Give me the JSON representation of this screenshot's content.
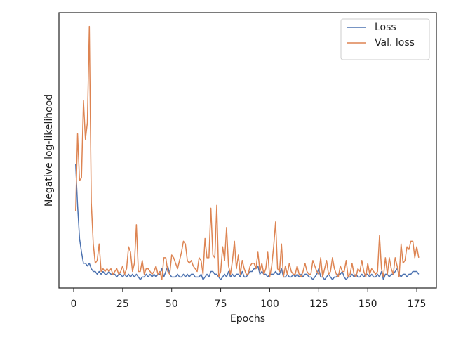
{
  "chart_data": {
    "type": "line",
    "x_label": "Epochs",
    "y_label": "Negative log-likelihood",
    "x": [
      1,
      2,
      3,
      4,
      5,
      6,
      7,
      8,
      9,
      10,
      11,
      12,
      13,
      14,
      15,
      16,
      17,
      18,
      19,
      20,
      21,
      22,
      23,
      24,
      25,
      26,
      27,
      28,
      29,
      30,
      31,
      32,
      33,
      34,
      35,
      36,
      37,
      38,
      39,
      40,
      41,
      42,
      43,
      44,
      45,
      46,
      47,
      48,
      49,
      50,
      51,
      52,
      53,
      54,
      55,
      56,
      57,
      58,
      59,
      60,
      61,
      62,
      63,
      64,
      65,
      66,
      67,
      68,
      69,
      70,
      71,
      72,
      73,
      74,
      75,
      76,
      77,
      78,
      79,
      80,
      81,
      82,
      83,
      84,
      85,
      86,
      87,
      88,
      89,
      90,
      91,
      92,
      93,
      94,
      95,
      96,
      97,
      98,
      99,
      100,
      101,
      102,
      103,
      104,
      105,
      106,
      107,
      108,
      109,
      110,
      111,
      112,
      113,
      114,
      115,
      116,
      117,
      118,
      119,
      120,
      121,
      122,
      123,
      124,
      125,
      126,
      127,
      128,
      129,
      130,
      131,
      132,
      133,
      134,
      135,
      136,
      137,
      138,
      139,
      140,
      141,
      142,
      143,
      144,
      145,
      146,
      147,
      148,
      149,
      150,
      151,
      152,
      153,
      154,
      155,
      156,
      157,
      158,
      159,
      160,
      161,
      162,
      163,
      164,
      165,
      166,
      167,
      168,
      169,
      170,
      171,
      172,
      173,
      174,
      175,
      176
    ],
    "series": [
      {
        "name": "Loss",
        "color": "#4c72b0",
        "values": [
          45,
          30,
          18,
          13,
          9,
          9,
          8,
          9,
          7,
          6,
          6,
          5,
          6,
          5,
          6,
          5,
          5,
          6,
          5,
          5,
          5,
          4,
          5,
          5,
          4,
          5,
          4,
          5,
          4,
          5,
          4,
          5,
          4,
          3,
          4,
          4,
          5,
          4,
          5,
          4,
          5,
          4,
          5,
          5,
          7,
          4,
          6,
          8,
          5,
          4,
          4,
          4,
          5,
          4,
          4,
          5,
          4,
          5,
          4,
          5,
          5,
          4,
          4,
          4,
          5,
          3,
          4,
          5,
          4,
          6,
          6,
          5,
          5,
          4,
          3,
          4,
          5,
          4,
          6,
          4,
          5,
          4,
          5,
          5,
          4,
          6,
          4,
          4,
          5,
          6,
          6,
          7,
          7,
          8,
          5,
          6,
          5,
          5,
          4,
          5,
          5,
          5,
          6,
          5,
          5,
          7,
          4,
          4,
          5,
          4,
          4,
          5,
          4,
          5,
          4,
          5,
          4,
          5,
          5,
          4,
          4,
          3,
          4,
          5,
          7,
          4,
          4,
          3,
          4,
          5,
          4,
          3,
          4,
          4,
          5,
          5,
          6,
          4,
          3,
          4,
          4,
          5,
          4,
          5,
          4,
          4,
          5,
          4,
          5,
          5,
          4,
          5,
          4,
          4,
          5,
          4,
          6,
          3,
          5,
          5,
          4,
          5,
          5,
          6,
          7,
          5,
          4,
          5,
          5,
          4,
          5,
          5,
          6,
          6,
          6,
          5
        ]
      },
      {
        "name": "Val. loss",
        "color": "#dd8452",
        "values": [
          28,
          56,
          39,
          40,
          68,
          54,
          60,
          95,
          31,
          16,
          9,
          10,
          16,
          6,
          7,
          6,
          7,
          6,
          7,
          5,
          6,
          7,
          5,
          6,
          8,
          5,
          7,
          15,
          13,
          6,
          9,
          23,
          6,
          6,
          10,
          5,
          7,
          7,
          6,
          5,
          6,
          8,
          5,
          6,
          3,
          11,
          11,
          6,
          5,
          12,
          11,
          9,
          7,
          10,
          13,
          17,
          16,
          10,
          9,
          10,
          8,
          7,
          6,
          11,
          10,
          5,
          18,
          11,
          11,
          29,
          12,
          11,
          30,
          4,
          6,
          15,
          10,
          22,
          8,
          5,
          10,
          17,
          7,
          12,
          5,
          10,
          7,
          5,
          5,
          8,
          9,
          9,
          7,
          13,
          6,
          9,
          5,
          7,
          13,
          4,
          8,
          15,
          24,
          7,
          6,
          16,
          4,
          8,
          5,
          9,
          6,
          5,
          5,
          8,
          5,
          4,
          6,
          9,
          6,
          5,
          5,
          10,
          8,
          6,
          5,
          11,
          4,
          7,
          10,
          5,
          6,
          11,
          7,
          5,
          4,
          8,
          6,
          6,
          10,
          4,
          5,
          9,
          5,
          4,
          7,
          6,
          10,
          6,
          4,
          9,
          5,
          7,
          6,
          5,
          6,
          19,
          7,
          4,
          11,
          5,
          11,
          7,
          5,
          11,
          8,
          4,
          16,
          9,
          10,
          15,
          14,
          17,
          17,
          11,
          15,
          11
        ]
      }
    ],
    "xlim": [
      -7.5,
      185
    ],
    "xticks": [
      0,
      25,
      50,
      75,
      100,
      125,
      150,
      175
    ],
    "ylim": [
      0,
      100
    ],
    "yticks": [],
    "legend": "upper right"
  }
}
